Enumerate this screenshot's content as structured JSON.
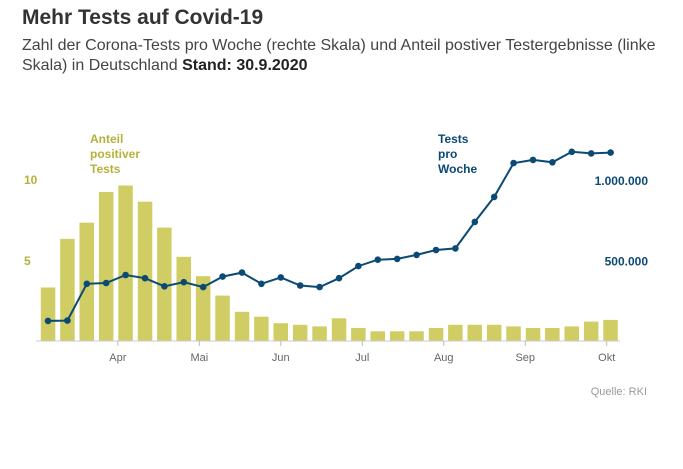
{
  "header": {
    "title": "Mehr Tests auf Covid-19",
    "subtitle": "Zahl der Corona-Tests pro Woche (rechte Skala) und Anteil postiver Testergebnisse (linke Skala) in Deutschland",
    "stand": "Stand: 30.9.2020"
  },
  "source": "Quelle: RKI",
  "colors": {
    "bars": "#cfcd63",
    "line": "#0b4a75",
    "left_axis": "#b5b13a",
    "right_axis": "#0b4a75"
  },
  "chart_data": {
    "type": "bar+line",
    "title": "Mehr Tests auf Covid-19",
    "x_tick_labels": [
      "Apr",
      "Mai",
      "Jun",
      "Jul",
      "Aug",
      "Sep",
      "Okt"
    ],
    "x_tick_week_index": [
      3.6,
      7.8,
      12.0,
      16.2,
      20.4,
      24.6,
      28.8
    ],
    "left_axis": {
      "ticks": [
        5,
        10
      ],
      "tick_labels": [
        "5",
        "10"
      ],
      "ylim": [
        0,
        13
      ]
    },
    "right_axis": {
      "ticks": [
        500000,
        1000000
      ],
      "tick_labels": [
        "500.000",
        "1.000.000"
      ],
      "ylim": [
        0,
        1300000
      ]
    },
    "annotations": {
      "bars_label": [
        "Anteil",
        "positiver",
        "Tests"
      ],
      "line_label": [
        "Tests",
        "pro",
        "Woche"
      ]
    },
    "series": [
      {
        "name": "Anteil positiver Tests",
        "axis": "left",
        "kind": "bar",
        "values": [
          3.3,
          6.3,
          7.3,
          9.2,
          9.6,
          8.6,
          7.0,
          5.2,
          4.0,
          2.8,
          1.8,
          1.5,
          1.1,
          1.0,
          0.9,
          1.4,
          0.8,
          0.6,
          0.6,
          0.6,
          0.8,
          1.0,
          1.0,
          1.0,
          0.9,
          0.8,
          0.8,
          0.9,
          1.2,
          1.3
        ]
      },
      {
        "name": "Tests pro Woche",
        "axis": "right",
        "kind": "line",
        "values": [
          125000,
          127000,
          355000,
          360000,
          410000,
          390000,
          340000,
          365000,
          335000,
          400000,
          425000,
          355000,
          395000,
          345000,
          335000,
          390000,
          465000,
          505000,
          510000,
          535000,
          565000,
          575000,
          740000,
          895000,
          1105000,
          1125000,
          1110000,
          1175000,
          1165000,
          1170000
        ]
      }
    ]
  }
}
